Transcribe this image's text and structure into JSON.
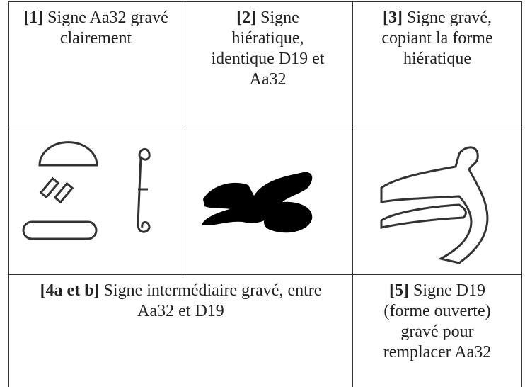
{
  "table": {
    "rows": [
      [
        {
          "label": "[1]",
          "text": "Signe Aa32 gravé clairement"
        },
        {
          "label": "[2]",
          "text": "Signe hiératique, identique D19 et Aa32"
        },
        {
          "label": "[3]",
          "text": "Signe gravé, copiant la forme hiératique"
        }
      ],
      [
        {
          "label": "[4a et b]",
          "text": "Signe intermédiaire gravé, entre Aa32 et D19"
        },
        {
          "label": "[5]",
          "text": "Signe D19 (forme ouverte) gravé pour remplacer Aa32"
        }
      ]
    ]
  }
}
